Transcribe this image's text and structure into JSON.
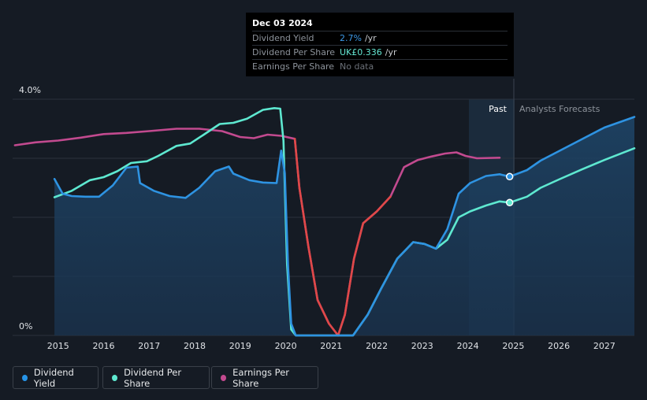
{
  "tooltip": {
    "date": "Dec 03 2024",
    "rows": [
      {
        "label": "Dividend Yield",
        "value": "2.7%",
        "unit": "/yr",
        "color": "#3d9ae8"
      },
      {
        "label": "Dividend Per Share",
        "value": "UK£0.336",
        "unit": "/yr",
        "color": "#64e6d2"
      },
      {
        "label": "Earnings Per Share",
        "value": "No data",
        "unit": "",
        "color": "#6b7078"
      }
    ]
  },
  "legend": [
    {
      "label": "Dividend Yield",
      "color": "#2694e8"
    },
    {
      "label": "Dividend Per Share",
      "color": "#5ee8d0"
    },
    {
      "label": "Earnings Per Share",
      "color": "#c24a8f"
    }
  ],
  "colors": {
    "dividend_yield": "#2e93e2",
    "dividend_per_share": "#5ee8d0",
    "earnings_per_share": "#c24a8f",
    "earnings_negative": "#e04848",
    "grid": "#2a313b",
    "past_band": "#1b2b3c",
    "axis_text": "#dfe2e6",
    "muted_text": "#8d939b"
  },
  "chart_data": {
    "type": "line",
    "title": "",
    "xlabel": "",
    "ylabel": "",
    "xlim": [
      2014.0,
      2027.66
    ],
    "ylim": [
      0,
      4.0
    ],
    "y_tick_labels": [
      {
        "value": 4.0,
        "label": "4.0%"
      },
      {
        "value": 0,
        "label": "0%"
      }
    ],
    "x_ticks": [
      2015,
      2016,
      2017,
      2018,
      2019,
      2020,
      2021,
      2022,
      2023,
      2024,
      2025,
      2026,
      2027
    ],
    "x_tick_labels": [
      "2015",
      "2016",
      "2017",
      "2018",
      "2019",
      "2020",
      "2021",
      "2022",
      "2023",
      "2024",
      "2025",
      "2026",
      "2027"
    ],
    "past_label": "Past",
    "forecast_label": "Analysts Forecasts",
    "past_band_start": 2023.88,
    "today": 2024.92,
    "series": [
      {
        "name": "Dividend Yield",
        "key": "dividend_yield",
        "filled": true,
        "points": [
          [
            2014.92,
            2.65
          ],
          [
            2015.1,
            2.4
          ],
          [
            2015.3,
            2.36
          ],
          [
            2015.6,
            2.35
          ],
          [
            2015.9,
            2.35
          ],
          [
            2016.2,
            2.54
          ],
          [
            2016.5,
            2.84
          ],
          [
            2016.75,
            2.86
          ],
          [
            2016.8,
            2.58
          ],
          [
            2017.1,
            2.45
          ],
          [
            2017.45,
            2.36
          ],
          [
            2017.8,
            2.33
          ],
          [
            2018.1,
            2.5
          ],
          [
            2018.45,
            2.78
          ],
          [
            2018.75,
            2.86
          ],
          [
            2018.85,
            2.74
          ],
          [
            2019.2,
            2.63
          ],
          [
            2019.5,
            2.59
          ],
          [
            2019.8,
            2.58
          ],
          [
            2019.9,
            3.13
          ],
          [
            2019.98,
            2.75
          ],
          [
            2020.05,
            1.2
          ],
          [
            2020.12,
            0.2
          ],
          [
            2020.22,
            0.0
          ],
          [
            2021.48,
            0.0
          ],
          [
            2021.8,
            0.35
          ],
          [
            2022.1,
            0.8
          ],
          [
            2022.45,
            1.3
          ],
          [
            2022.8,
            1.58
          ],
          [
            2023.05,
            1.55
          ],
          [
            2023.3,
            1.47
          ],
          [
            2023.55,
            1.8
          ],
          [
            2023.8,
            2.4
          ],
          [
            2024.05,
            2.58
          ],
          [
            2024.4,
            2.7
          ],
          [
            2024.7,
            2.73
          ],
          [
            2024.92,
            2.69
          ],
          [
            2025.3,
            2.8
          ],
          [
            2025.6,
            2.96
          ],
          [
            2026.0,
            3.12
          ],
          [
            2026.5,
            3.32
          ],
          [
            2027.0,
            3.52
          ],
          [
            2027.66,
            3.7
          ]
        ]
      },
      {
        "name": "Dividend Per Share",
        "key": "dividend_per_share",
        "filled": false,
        "points": [
          [
            2014.92,
            2.34
          ],
          [
            2015.3,
            2.45
          ],
          [
            2015.7,
            2.63
          ],
          [
            2016.0,
            2.68
          ],
          [
            2016.3,
            2.78
          ],
          [
            2016.6,
            2.92
          ],
          [
            2016.95,
            2.95
          ],
          [
            2017.2,
            3.04
          ],
          [
            2017.6,
            3.21
          ],
          [
            2017.9,
            3.25
          ],
          [
            2018.2,
            3.4
          ],
          [
            2018.55,
            3.58
          ],
          [
            2018.85,
            3.6
          ],
          [
            2019.15,
            3.67
          ],
          [
            2019.5,
            3.82
          ],
          [
            2019.75,
            3.85
          ],
          [
            2019.88,
            3.84
          ],
          [
            2019.95,
            3.3
          ],
          [
            2020.03,
            1.2
          ],
          [
            2020.12,
            0.1
          ],
          [
            2020.22,
            0.0
          ],
          [
            2021.48,
            0.0
          ],
          [
            2021.8,
            0.35
          ],
          [
            2022.1,
            0.8
          ],
          [
            2022.45,
            1.3
          ],
          [
            2022.8,
            1.58
          ],
          [
            2023.05,
            1.55
          ],
          [
            2023.3,
            1.47
          ],
          [
            2023.55,
            1.62
          ],
          [
            2023.8,
            2.0
          ],
          [
            2024.05,
            2.1
          ],
          [
            2024.4,
            2.2
          ],
          [
            2024.7,
            2.27
          ],
          [
            2024.92,
            2.25
          ],
          [
            2025.3,
            2.35
          ],
          [
            2025.6,
            2.5
          ],
          [
            2026.0,
            2.64
          ],
          [
            2026.5,
            2.81
          ],
          [
            2027.0,
            2.97
          ],
          [
            2027.66,
            3.17
          ]
        ]
      },
      {
        "name": "Earnings Per Share",
        "key": "earnings_per_share",
        "filled": false,
        "points": [
          [
            2014.05,
            3.22
          ],
          [
            2014.5,
            3.27
          ],
          [
            2015.0,
            3.3
          ],
          [
            2015.5,
            3.35
          ],
          [
            2016.0,
            3.41
          ],
          [
            2016.5,
            3.43
          ],
          [
            2017.0,
            3.46
          ],
          [
            2017.6,
            3.5
          ],
          [
            2018.1,
            3.5
          ],
          [
            2018.6,
            3.46
          ],
          [
            2019.0,
            3.36
          ],
          [
            2019.3,
            3.34
          ],
          [
            2019.6,
            3.4
          ],
          [
            2019.9,
            3.38
          ],
          [
            2020.2,
            3.33
          ],
          [
            2020.3,
            2.5
          ],
          [
            2020.5,
            1.5
          ],
          [
            2020.7,
            0.6
          ],
          [
            2020.95,
            0.2
          ],
          [
            2021.15,
            0.0
          ],
          [
            2021.3,
            0.35
          ],
          [
            2021.5,
            1.3
          ],
          [
            2021.7,
            1.9
          ],
          [
            2022.0,
            2.1
          ],
          [
            2022.3,
            2.35
          ],
          [
            2022.6,
            2.85
          ],
          [
            2022.9,
            2.97
          ],
          [
            2023.2,
            3.03
          ],
          [
            2023.5,
            3.08
          ],
          [
            2023.75,
            3.1
          ],
          [
            2023.95,
            3.04
          ],
          [
            2024.2,
            3.0
          ],
          [
            2024.7,
            3.01
          ]
        ]
      }
    ],
    "highlight_points": [
      {
        "series": "dividend_yield",
        "x": 2024.92,
        "y": 2.69
      },
      {
        "series": "dividend_per_share",
        "x": 2024.92,
        "y": 2.25
      }
    ]
  }
}
